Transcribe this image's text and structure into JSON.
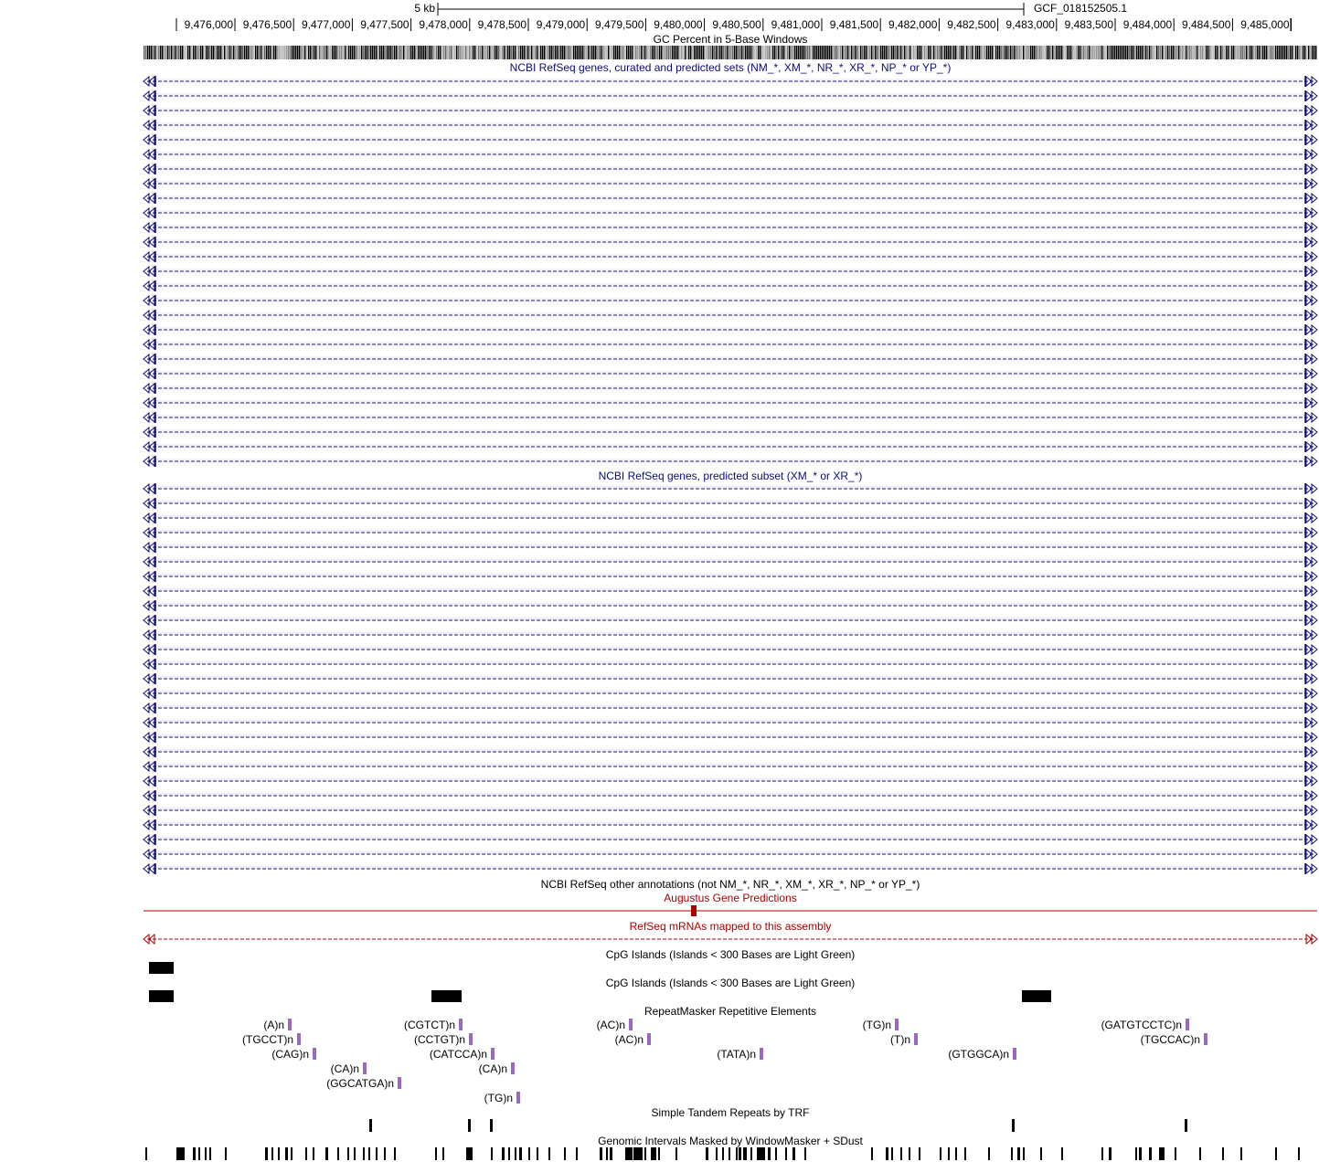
{
  "scale_bar": {
    "label": "5 kb",
    "assembly": "GCF_018152505.1"
  },
  "ruler": {
    "start": 9475700,
    "end": 9485200,
    "tick_labels": [
      "9,476,000",
      "9,476,500",
      "9,477,000",
      "9,477,500",
      "9,478,000",
      "9,478,500",
      "9,479,000",
      "9,479,500",
      "9,480,000",
      "9,480,500",
      "9,481,000",
      "9,481,500",
      "9,482,000",
      "9,482,500",
      "9,483,000",
      "9,483,500",
      "9,484,000",
      "9,484,500",
      "9,485,000"
    ]
  },
  "tracks": {
    "gc_percent": {
      "title": "GC Percent in 5-Base Windows"
    },
    "refseq_all": {
      "title": "NCBI RefSeq genes, curated and predicted sets (NM_*, XM_*, NR_*, XR_*, NP_* or YP_*)",
      "color": "#0c0c78",
      "transcript_count": 27
    },
    "refseq_predicted": {
      "title": "NCBI RefSeq genes, predicted subset (XM_* or XR_*)",
      "color": "#0c0c78",
      "transcript_count": 27
    },
    "refseq_other": {
      "title": "NCBI RefSeq other annotations (not NM_*, NR_*, XM_*, XR_*, NP_* or YP_*)",
      "color": "#000000"
    },
    "augustus": {
      "title": "Augustus Gene Predictions",
      "color": "#aa0000"
    },
    "refseq_mrna": {
      "title": "RefSeq mRNAs mapped to this assembly",
      "color": "#aa0000"
    },
    "cpg_1": {
      "title": "CpG Islands (Islands < 300 Bases are Light Green)"
    },
    "cpg_2": {
      "title": "CpG Islands (Islands < 300 Bases are Light Green)"
    },
    "repeatmasker": {
      "title": "RepeatMasker Repetitive Elements",
      "color": "#9b6ac0",
      "items": [
        {
          "name": "(A)n",
          "row": 0
        },
        {
          "name": "(CGTCT)n",
          "row": 0
        },
        {
          "name": "(AC)n",
          "row": 0
        },
        {
          "name": "(TG)n",
          "row": 0
        },
        {
          "name": "(GATGTCCTC)n",
          "row": 0
        },
        {
          "name": "(TGCCT)n",
          "row": 1
        },
        {
          "name": "(CCTGT)n",
          "row": 1
        },
        {
          "name": "(AC)n",
          "row": 1
        },
        {
          "name": "(T)n",
          "row": 1
        },
        {
          "name": "(TGCCAC)n",
          "row": 1
        },
        {
          "name": "(CAG)n",
          "row": 2
        },
        {
          "name": "(CATCCA)n",
          "row": 2
        },
        {
          "name": "(TATA)n",
          "row": 2
        },
        {
          "name": "(GTGGCA)n",
          "row": 2
        },
        {
          "name": "(CA)n",
          "row": 3
        },
        {
          "name": "(CA)n",
          "row": 3
        },
        {
          "name": "(GGCATGA)n",
          "row": 4
        },
        {
          "name": "(TG)n",
          "row": 5
        }
      ]
    },
    "simple_repeats": {
      "title": "Simple Tandem Repeats by TRF"
    },
    "windowmasker": {
      "title": "Genomic Intervals Masked by WindowMasker + SDust"
    }
  }
}
